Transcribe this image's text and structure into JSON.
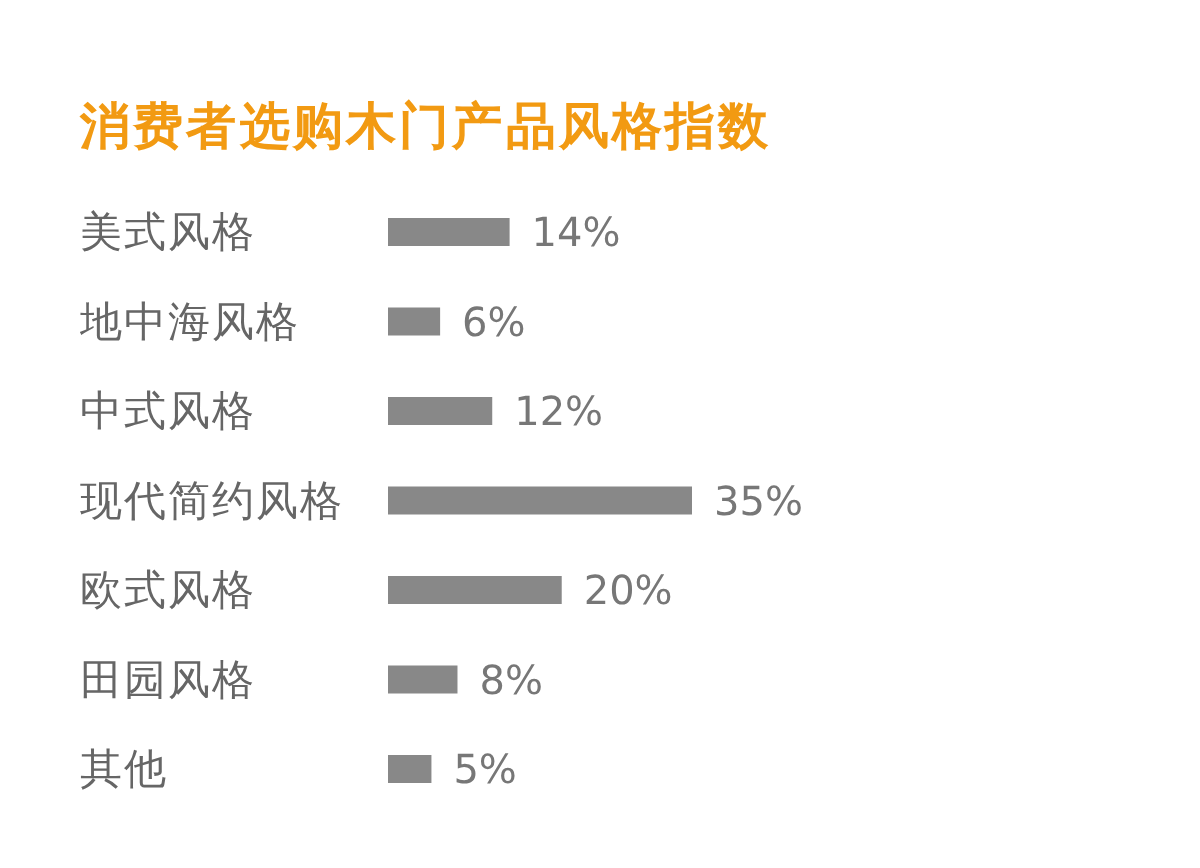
{
  "chart_data": {
    "type": "bar",
    "orientation": "horizontal",
    "title": "消费者选购木门产品风格指数",
    "categories": [
      "美式风格",
      "地中海风格",
      "中式风格",
      "现代简约风格",
      "欧式风格",
      "田园风格",
      "其他"
    ],
    "values": [
      14,
      6,
      12,
      35,
      20,
      8,
      5
    ],
    "value_labels": [
      "14%",
      "6%",
      "12%",
      "35%",
      "20%",
      "8%",
      "5%"
    ],
    "color": "#888888"
  }
}
